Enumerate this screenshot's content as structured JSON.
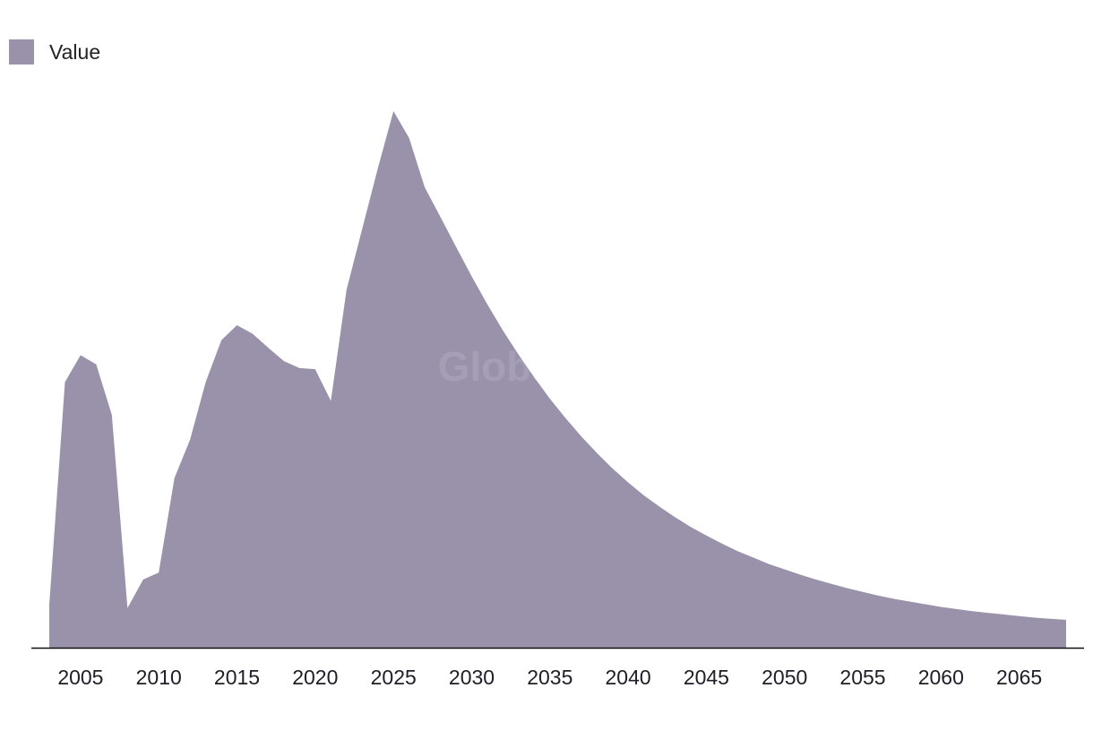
{
  "watermark": "GlobalData",
  "chart_data": {
    "type": "area",
    "series": [
      {
        "name": "Value",
        "color": "#9a91aa",
        "x": [
          2003,
          2004,
          2005,
          2006,
          2007,
          2008,
          2009,
          2010,
          2011,
          2012,
          2013,
          2014,
          2015,
          2016,
          2017,
          2018,
          2019,
          2020,
          2021,
          2022,
          2023,
          2024,
          2025,
          2026,
          2027,
          2028,
          2029,
          2030,
          2031,
          2032,
          2033,
          2034,
          2035,
          2036,
          2037,
          2038,
          2039,
          2040,
          2041,
          2042,
          2043,
          2044,
          2045,
          2046,
          2047,
          2048,
          2049,
          2050,
          2051,
          2052,
          2053,
          2054,
          2055,
          2056,
          2057,
          2058,
          2059,
          2060,
          2061,
          2062,
          2063,
          2064,
          2065,
          2066,
          2067,
          2068
        ],
        "values": [
          8,
          49.5,
          54.5,
          52.8,
          43.4,
          7.4,
          12.7,
          14,
          31.6,
          38.8,
          49.5,
          57.3,
          60.1,
          58.5,
          55.9,
          53.4,
          52.1,
          51.9,
          46,
          66.7,
          78,
          89.3,
          100,
          95,
          85.8,
          80.3,
          74.7,
          69.2,
          64,
          59.1,
          54.6,
          50.4,
          46.4,
          42.8,
          39.4,
          36.3,
          33.4,
          30.8,
          28.4,
          26.3,
          24.3,
          22.5,
          20.9,
          19.4,
          18,
          16.8,
          15.6,
          14.6,
          13.6,
          12.7,
          11.9,
          11.1,
          10.4,
          9.7,
          9.1,
          8.6,
          8.1,
          7.6,
          7.2,
          6.8,
          6.5,
          6.2,
          5.9,
          5.6,
          5.4,
          5.2
        ]
      }
    ],
    "xticks": [
      2005,
      2010,
      2015,
      2020,
      2025,
      2030,
      2035,
      2040,
      2045,
      2050,
      2055,
      2060,
      2065
    ],
    "xlim": [
      2003,
      2068
    ],
    "ylim": [
      0,
      100
    ],
    "legend": "top-left",
    "grid": false,
    "title": "",
    "xlabel": "",
    "ylabel": ""
  }
}
